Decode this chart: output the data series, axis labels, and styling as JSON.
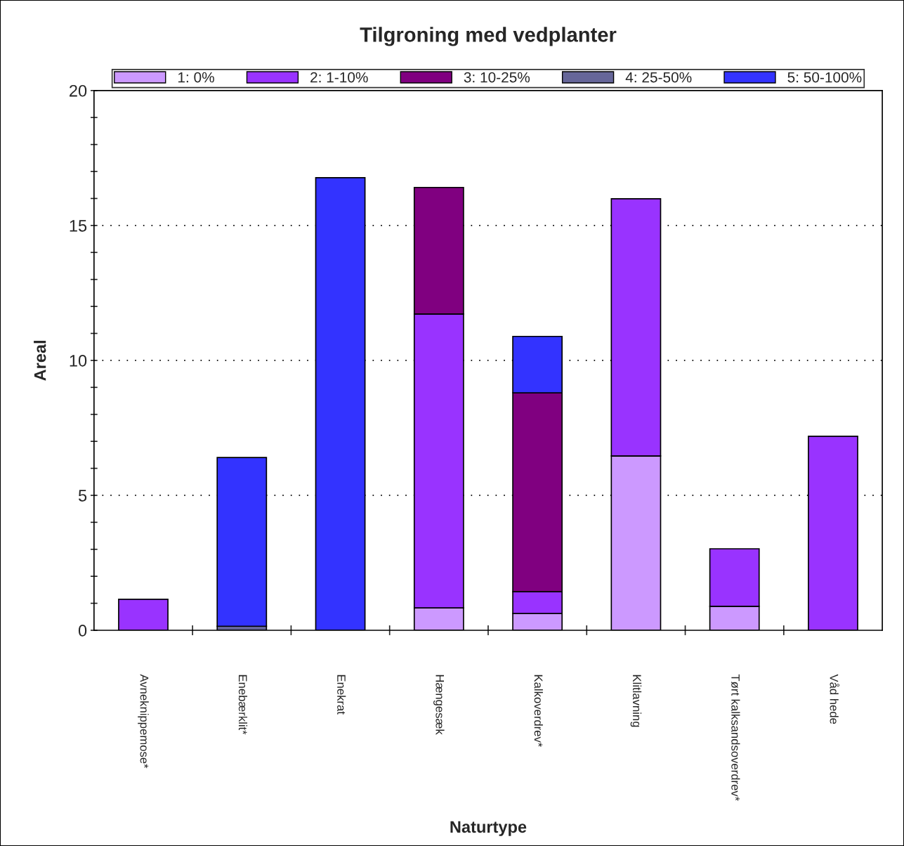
{
  "chart_data": {
    "type": "bar",
    "title": "Tilgroning med vedplanter",
    "xlabel": "Naturtype",
    "ylabel": "Areal",
    "categories": [
      "Avneknippemose*",
      "Enebærklit*",
      "Enekrat",
      "Hængesæk",
      "Kalkoverdrev*",
      "Klitlavning",
      "Tørt kalksandsoverdrev*",
      "Våd hede"
    ],
    "stacked": true,
    "series": [
      {
        "name": "1: 0%",
        "color": "#cc99ff",
        "values": [
          null,
          null,
          null,
          0.83,
          0.62,
          6.46,
          0.89,
          null
        ]
      },
      {
        "name": "2: 1-10%",
        "color": "#9933ff",
        "values": [
          1.15,
          null,
          null,
          10.89,
          0.81,
          9.53,
          2.13,
          7.19
        ]
      },
      {
        "name": "3: 10-25%",
        "color": "#800080",
        "values": [
          null,
          null,
          null,
          4.69,
          7.37,
          null,
          null,
          null
        ]
      },
      {
        "name": "4: 25-50%",
        "color": "#666699",
        "values": [
          null,
          0.15,
          null,
          null,
          null,
          null,
          null,
          null
        ]
      },
      {
        "name": "5: 50-100%",
        "color": "#3333ff",
        "values": [
          null,
          6.25,
          16.77,
          null,
          2.09,
          null,
          null,
          null
        ]
      }
    ],
    "ylim": [
      0,
      20
    ],
    "yticks": [
      0,
      {
        "value": 1,
        "label": null
      },
      {
        "value": 2,
        "label": null
      },
      {
        "value": 3,
        "label": null
      },
      {
        "value": 4,
        "label": null
      },
      5,
      {
        "value": 6,
        "label": null
      },
      {
        "value": 7,
        "label": null
      },
      {
        "value": 8,
        "label": null
      },
      {
        "value": 9,
        "label": null
      },
      10,
      {
        "value": 11,
        "label": null
      },
      {
        "value": 12,
        "label": null
      },
      {
        "value": 13,
        "label": null
      },
      {
        "value": 14,
        "label": null
      },
      15,
      {
        "value": 16,
        "label": null
      },
      {
        "value": 17,
        "label": null
      },
      {
        "value": 18,
        "label": null
      },
      {
        "value": 19,
        "label": null
      },
      20
    ],
    "grid": "y",
    "legend": "top",
    "line_style": "dotted"
  }
}
